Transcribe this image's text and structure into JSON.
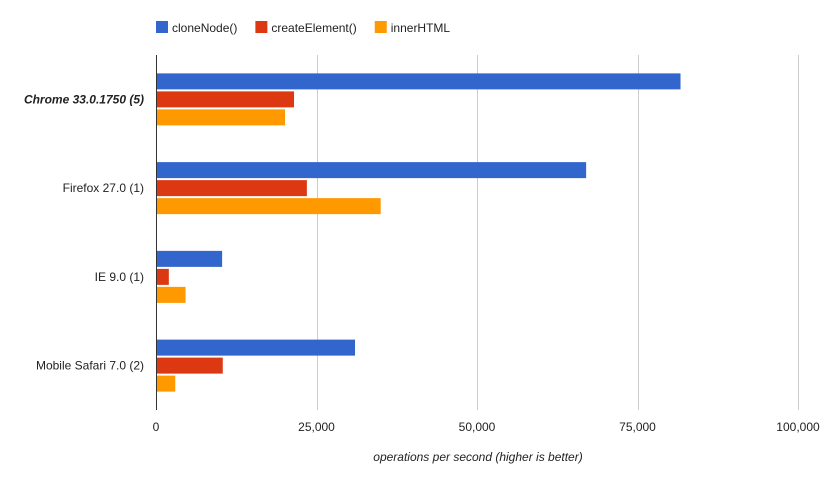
{
  "chart_data": {
    "type": "bar",
    "orientation": "horizontal",
    "title": "",
    "xlabel": "operations per second (higher is better)",
    "ylabel": "",
    "xlim": [
      0,
      100000
    ],
    "x_ticks": [
      0,
      25000,
      50000,
      75000,
      100000
    ],
    "x_tick_labels": [
      "0",
      "25,000",
      "50,000",
      "75,000",
      "100,000"
    ],
    "grid": true,
    "legend_position": "top",
    "categories": [
      "Chrome 33.0.1750 (5)",
      "Firefox 27.0 (1)",
      "IE 9.0 (1)",
      "Mobile Safari 7.0 (2)"
    ],
    "highlighted_category": "Chrome 33.0.1750 (5)",
    "series": [
      {
        "name": "cloneNode()",
        "color": "#3366cc",
        "values": [
          81700,
          67000,
          10300,
          31000
        ]
      },
      {
        "name": "createElement()",
        "color": "#dc3912",
        "values": [
          21500,
          23500,
          2000,
          10400
        ]
      },
      {
        "name": "innerHTML",
        "color": "#ff9900",
        "values": [
          20100,
          35000,
          4600,
          3000
        ]
      }
    ]
  }
}
